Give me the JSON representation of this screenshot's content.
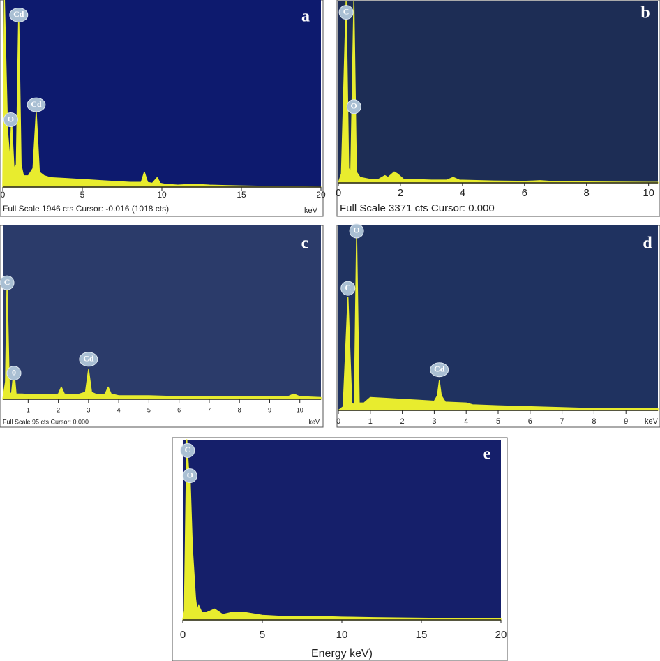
{
  "chart_data": [
    {
      "type": "area",
      "panel_label": "a",
      "color": "#e8ec2e",
      "background": "#0d1a6e",
      "x": [
        0,
        0.1,
        0.3,
        0.45,
        0.55,
        0.7,
        0.85,
        1.0,
        1.15,
        1.3,
        1.6,
        1.9,
        2.1,
        2.3,
        2.6,
        3,
        4,
        5,
        6,
        7,
        8,
        8.7,
        8.9,
        9.1,
        9.4,
        9.7,
        9.9,
        10.2,
        11,
        12,
        13,
        14,
        15,
        16,
        17,
        18,
        19,
        20
      ],
      "values": [
        0,
        100,
        30,
        14,
        36,
        10,
        12,
        92,
        12,
        6,
        6,
        10,
        40,
        8,
        6,
        5,
        4.5,
        4,
        3.5,
        3,
        2.5,
        2.5,
        8,
        2.5,
        2,
        5,
        2,
        1.5,
        1,
        1.5,
        1,
        0.8,
        0.6,
        0.5,
        0.3,
        0.2,
        0.1,
        0
      ],
      "xlim": [
        0,
        20
      ],
      "ylim": [
        0,
        100
      ],
      "xticks": [
        0,
        5,
        10,
        15,
        20
      ],
      "annotations": [
        {
          "text": "Cd",
          "x": 1.0,
          "y": 92
        },
        {
          "text": "O",
          "x": 0.5,
          "y": 36
        },
        {
          "text": "Cd",
          "x": 2.1,
          "y": 44
        }
      ],
      "footer": "Full Scale 1946 cts Cursor: -0.016  (1018 cts)",
      "xlabel": "keV"
    },
    {
      "type": "area",
      "panel_label": "b",
      "color": "#e8ec2e",
      "background": "#1d2d55",
      "x": [
        0,
        0.1,
        0.25,
        0.33,
        0.4,
        0.5,
        0.58,
        0.7,
        1,
        1.3,
        1.5,
        1.6,
        1.8,
        1.9,
        2.1,
        3,
        3.5,
        3.7,
        3.9,
        5,
        6,
        6.5,
        7,
        8,
        9,
        10,
        10.3
      ],
      "values": [
        0,
        5,
        100,
        8,
        6,
        100,
        6,
        3,
        2,
        2,
        4,
        3,
        6,
        5,
        2,
        1.5,
        1.5,
        3,
        1.5,
        1,
        0.8,
        1.2,
        0.6,
        0.5,
        0.4,
        0.3,
        0.3
      ],
      "xlim": [
        0,
        10.3
      ],
      "ylim": [
        0,
        100
      ],
      "xticks": [
        0,
        2,
        4,
        6,
        8,
        10
      ],
      "annotations": [
        {
          "text": "C",
          "x": 0.25,
          "y": 94
        },
        {
          "text": "O",
          "x": 0.5,
          "y": 42
        }
      ],
      "footer": "Full Scale 3371 cts Cursor: 0.000"
    },
    {
      "type": "area",
      "panel_label": "c",
      "color": "#e8ec2e",
      "background": "#2b3b6a",
      "x": [
        0.16,
        0.25,
        0.3,
        0.38,
        0.45,
        0.53,
        0.6,
        0.8,
        1.2,
        1.6,
        2.0,
        2.1,
        2.2,
        2.6,
        2.9,
        3.0,
        3.1,
        3.3,
        3.55,
        3.65,
        3.75,
        4,
        5,
        6,
        7,
        8,
        9,
        9.6,
        9.8,
        10,
        10.7
      ],
      "values": [
        0,
        10,
        67,
        4,
        3,
        17,
        3,
        3,
        2.5,
        2.5,
        3,
        7,
        3,
        2.5,
        4,
        17,
        4,
        2.5,
        3,
        7,
        3,
        2,
        2,
        1.5,
        1.5,
        1.5,
        1.5,
        1.5,
        3,
        1.5,
        1
      ],
      "xlim": [
        0.16,
        10.7
      ],
      "ylim": [
        0,
        100
      ],
      "xticks": [
        1,
        2,
        3,
        4,
        5,
        6,
        7,
        8,
        9,
        10
      ],
      "annotations": [
        {
          "text": "C",
          "x": 0.3,
          "y": 67
        },
        {
          "text": "0",
          "x": 0.53,
          "y": 15
        },
        {
          "text": "Cd",
          "x": 3.0,
          "y": 23
        }
      ],
      "footer": "Full Scale 95 cts Cursor: 0.000",
      "xlabel": "keV"
    },
    {
      "type": "area",
      "panel_label": "d",
      "color": "#e8ec2e",
      "background": "#1f3260",
      "x": [
        0,
        0.15,
        0.3,
        0.42,
        0.5,
        0.57,
        0.65,
        0.8,
        1,
        1.5,
        2,
        2.5,
        3,
        3.1,
        3.16,
        3.22,
        3.35,
        4,
        4.2,
        5,
        6,
        7,
        8,
        9,
        10
      ],
      "values": [
        0,
        2,
        61,
        4,
        3,
        95,
        4,
        4,
        7,
        6.5,
        6,
        5.5,
        5,
        8,
        16,
        8,
        4.5,
        4,
        3,
        2.5,
        2,
        1.5,
        1,
        1,
        1
      ],
      "xlim": [
        0,
        10
      ],
      "ylim": [
        0,
        100
      ],
      "xticks": [
        0,
        1,
        2,
        3,
        4,
        5,
        6,
        7,
        8,
        9
      ],
      "annotations": [
        {
          "text": "C",
          "x": 0.3,
          "y": 66
        },
        {
          "text": "O",
          "x": 0.57,
          "y": 97
        },
        {
          "text": "Cd",
          "x": 3.16,
          "y": 22
        }
      ],
      "xlabel": "keV"
    },
    {
      "type": "area",
      "panel_label": "e",
      "color": "#e8ec2e",
      "background": "#151f6a",
      "x": [
        0,
        0.1,
        0.25,
        0.35,
        0.45,
        0.6,
        0.8,
        0.9,
        1,
        1.2,
        1.5,
        2,
        2.5,
        3,
        4,
        5,
        6,
        8,
        10,
        12,
        14,
        16,
        18,
        20
      ],
      "values": [
        0,
        5,
        100,
        85,
        80,
        40,
        12,
        5,
        8,
        4,
        4,
        6,
        3,
        4,
        4,
        2.5,
        2,
        2,
        1.5,
        1.2,
        1,
        0.8,
        0.6,
        0.5
      ],
      "xlim": [
        0,
        20
      ],
      "ylim": [
        0,
        100
      ],
      "xticks": [
        0,
        5,
        10,
        15,
        20
      ],
      "annotations": [
        {
          "text": "C",
          "x": 0.3,
          "y": 94
        },
        {
          "text": "O",
          "x": 0.45,
          "y": 80
        }
      ],
      "xlabel": "Energy keV)"
    }
  ]
}
